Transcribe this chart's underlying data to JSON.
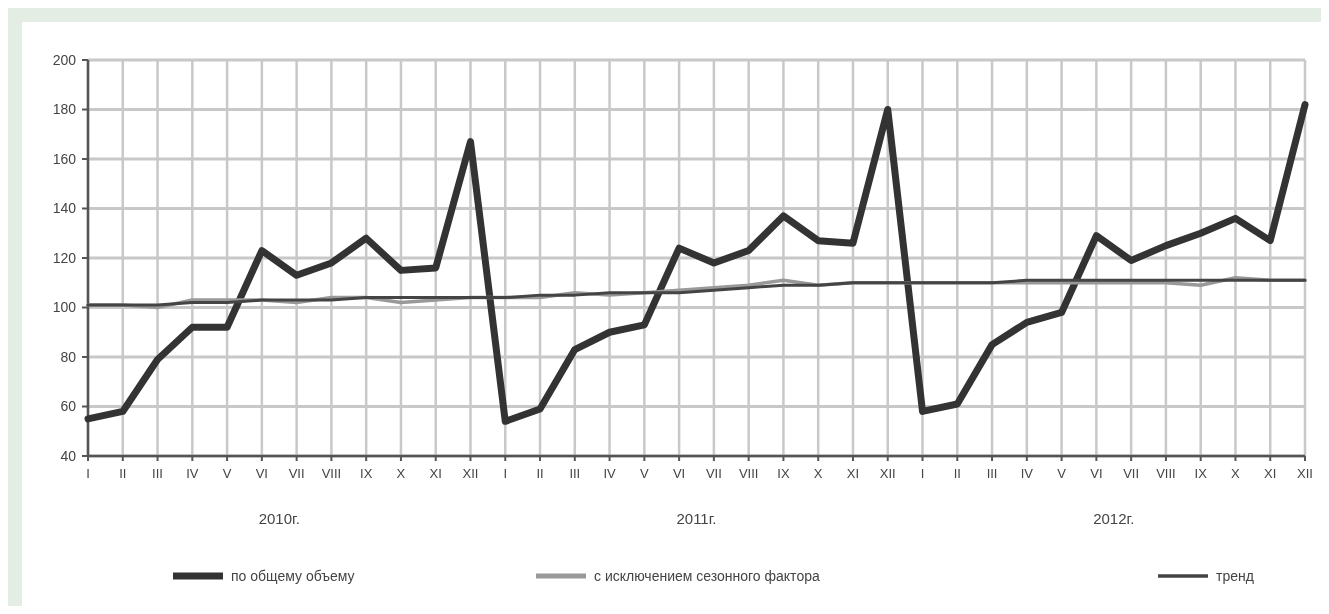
{
  "chart_data": {
    "type": "line",
    "categories": [
      "I",
      "II",
      "III",
      "IV",
      "V",
      "VI",
      "VII",
      "VIII",
      "IX",
      "X",
      "XI",
      "XII",
      "I",
      "II",
      "III",
      "IV",
      "V",
      "VI",
      "VII",
      "VIII",
      "IX",
      "X",
      "XI",
      "XII",
      "I",
      "II",
      "III",
      "IV",
      "V",
      "VI",
      "VII",
      "VIII",
      "IX",
      "X",
      "XI",
      "XII"
    ],
    "series": [
      {
        "name": "по общему объему",
        "color": "#333333",
        "values": [
          55,
          58,
          79,
          92,
          92,
          123,
          113,
          118,
          128,
          115,
          116,
          167,
          54,
          59,
          83,
          90,
          93,
          124,
          118,
          123,
          137,
          127,
          126,
          180,
          58,
          61,
          85,
          94,
          98,
          129,
          119,
          125,
          130,
          136,
          127,
          182
        ]
      },
      {
        "name": "с исключением сезонного фактора",
        "color": "#999999",
        "values": [
          101,
          101,
          100,
          103,
          103,
          103,
          102,
          104,
          104,
          102,
          103,
          104,
          104,
          104,
          106,
          105,
          106,
          107,
          108,
          109,
          111,
          109,
          110,
          110,
          110,
          110,
          110,
          110,
          110,
          110,
          110,
          110,
          109,
          112,
          111,
          111
        ]
      },
      {
        "name": "тренд",
        "color": "#444444",
        "values": [
          101,
          101,
          101,
          102,
          102,
          103,
          103,
          103,
          104,
          104,
          104,
          104,
          104,
          105,
          105,
          106,
          106,
          106,
          107,
          108,
          109,
          109,
          110,
          110,
          110,
          110,
          110,
          111,
          111,
          111,
          111,
          111,
          111,
          111,
          111,
          111
        ]
      }
    ],
    "ylim": [
      40,
      200
    ],
    "yticks": [
      40,
      60,
      80,
      100,
      120,
      140,
      160,
      180,
      200
    ],
    "grid": true,
    "legend": "bottom",
    "line_style": "solid",
    "annotations": [
      "2010г.",
      "2011г.",
      "2012г."
    ]
  }
}
